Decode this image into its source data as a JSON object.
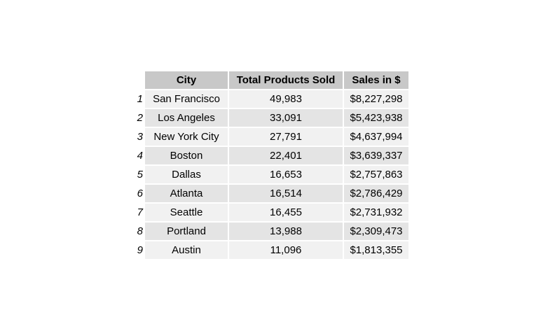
{
  "chart_data": {
    "type": "table",
    "columns": [
      "City",
      "Total Products Sold",
      "Sales in $"
    ],
    "rows": [
      {
        "index": "1",
        "city": "San Francisco",
        "products": "49,983",
        "sales": "$8,227,298"
      },
      {
        "index": "2",
        "city": "Los Angeles",
        "products": "33,091",
        "sales": "$5,423,938"
      },
      {
        "index": "3",
        "city": "New York City",
        "products": "27,791",
        "sales": "$4,637,994"
      },
      {
        "index": "4",
        "city": "Boston",
        "products": "22,401",
        "sales": "$3,639,337"
      },
      {
        "index": "5",
        "city": "Dallas",
        "products": "16,653",
        "sales": "$2,757,863"
      },
      {
        "index": "6",
        "city": "Atlanta",
        "products": "16,514",
        "sales": "$2,786,429"
      },
      {
        "index": "7",
        "city": "Seattle",
        "products": "16,455",
        "sales": "$2,731,932"
      },
      {
        "index": "8",
        "city": "Portland",
        "products": "13,988",
        "sales": "$2,309,473"
      },
      {
        "index": "9",
        "city": "Austin",
        "products": "11,096",
        "sales": "$1,813,355"
      }
    ]
  },
  "colors": {
    "header_background": "#c8c8c8",
    "row_odd_background": "#f1f1f1",
    "row_even_background": "#e4e4e4",
    "text": "#000000"
  }
}
